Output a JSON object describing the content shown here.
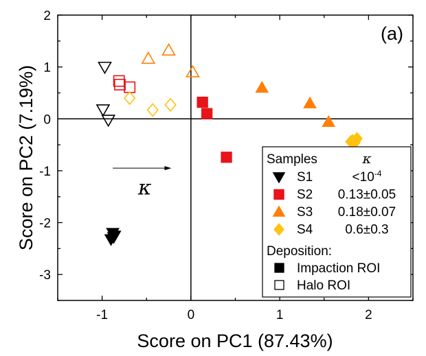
{
  "chart_data": {
    "type": "scatter",
    "title": "",
    "panel_label": "(a)",
    "xlabel": "Score on PC1 (87.43%)",
    "ylabel": "Score on PC2 (7.19%)",
    "xlim": [
      -1.5,
      2.5
    ],
    "ylim": [
      -3.5,
      2.0
    ],
    "xticks": [
      -1,
      0,
      1,
      2
    ],
    "yticks": [
      -3,
      -2,
      -1,
      0,
      1,
      2
    ],
    "zero_lines": true,
    "grid": false,
    "legend_position": "bottom-right",
    "legend": {
      "header_samples": "Samples",
      "header_kappa": "κ",
      "entries": [
        {
          "sample": "S1",
          "kappa_base": "<10",
          "kappa_exp": "-4",
          "marker": "triangle-down",
          "color": "#000000"
        },
        {
          "sample": "S2",
          "kappa_base": "0.13±0.05",
          "kappa_exp": "",
          "marker": "square",
          "color": "#e8131b"
        },
        {
          "sample": "S3",
          "kappa_base": "0.18±0.07",
          "kappa_exp": "",
          "marker": "triangle-up",
          "color": "#ff7f0a"
        },
        {
          "sample": "S4",
          "kappa_base": "0.6±0.3",
          "kappa_exp": "",
          "marker": "diamond",
          "color": "#ffc20e"
        }
      ],
      "deposition_header": "Deposition:",
      "deposition": [
        {
          "label": "Impaction ROI",
          "filled": true
        },
        {
          "label": "Halo ROI",
          "filled": false
        }
      ]
    },
    "annotation": {
      "text": "κ",
      "arrow_from": [
        -0.88,
        -0.95
      ],
      "arrow_to": [
        -0.22,
        -0.95
      ],
      "text_pos": [
        -0.52,
        -1.35
      ]
    },
    "series": [
      {
        "name": "S1",
        "marker": "triangle-down",
        "color": "#000000",
        "filled": true,
        "points": [
          [
            -0.88,
            -2.2
          ],
          [
            -0.86,
            -2.25
          ],
          [
            -0.9,
            -2.32
          ],
          [
            -0.87,
            -2.28
          ]
        ]
      },
      {
        "name": "S1",
        "marker": "triangle-down",
        "color": "#000000",
        "filled": false,
        "points": [
          [
            -0.97,
            1.0
          ],
          [
            -0.99,
            0.18
          ],
          [
            -0.93,
            -0.02
          ]
        ]
      },
      {
        "name": "S2",
        "marker": "square",
        "color": "#e8131b",
        "filled": true,
        "points": [
          [
            0.13,
            0.32
          ],
          [
            0.18,
            0.1
          ],
          [
            0.4,
            -0.74
          ]
        ]
      },
      {
        "name": "S2",
        "marker": "square",
        "color": "#e8131b",
        "filled": false,
        "points": [
          [
            -0.81,
            0.73
          ],
          [
            -0.8,
            0.66
          ],
          [
            -0.69,
            0.61
          ]
        ]
      },
      {
        "name": "S3",
        "marker": "triangle-up",
        "color": "#ff7f0a",
        "filled": true,
        "points": [
          [
            0.8,
            0.6
          ],
          [
            1.34,
            0.3
          ],
          [
            1.55,
            -0.06
          ]
        ]
      },
      {
        "name": "S3",
        "marker": "triangle-up",
        "color": "#ff7f0a",
        "filled": false,
        "points": [
          [
            -0.48,
            1.16
          ],
          [
            -0.25,
            1.32
          ],
          [
            0.02,
            0.9
          ]
        ]
      },
      {
        "name": "S4",
        "marker": "diamond",
        "color": "#ffc20e",
        "filled": true,
        "points": [
          [
            1.82,
            -0.42
          ],
          [
            1.87,
            -0.38
          ],
          [
            1.8,
            -0.44
          ],
          [
            1.85,
            -0.45
          ]
        ]
      },
      {
        "name": "S4",
        "marker": "diamond",
        "color": "#ffc20e",
        "filled": false,
        "points": [
          [
            -0.69,
            0.4
          ],
          [
            -0.43,
            0.17
          ],
          [
            -0.23,
            0.27
          ]
        ]
      }
    ]
  }
}
